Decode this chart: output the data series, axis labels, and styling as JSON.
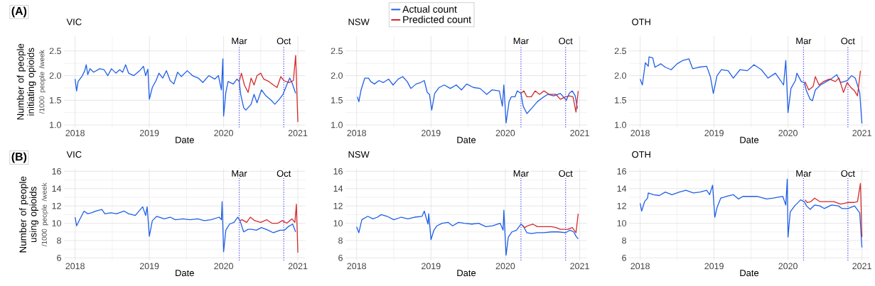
{
  "chart_data": [
    {
      "type": "line",
      "title": "VIC",
      "xlabel": "Date",
      "ylabel": "Number of people initiating opioids",
      "annotations": [
        "(A)",
        "/1000 people /week"
      ],
      "xlim": [
        2017.85,
        2021.1
      ],
      "ylim": [
        0.95,
        2.8
      ],
      "xticks": [
        2018,
        2019,
        2020,
        2021
      ],
      "yticks": [
        {
          "value": 1,
          "label": "1.0"
        },
        {
          "value": 1.5,
          "label": "1.5"
        },
        {
          "value": 2,
          "label": "2.0"
        },
        {
          "value": 2.5,
          "label": "2.5"
        }
      ],
      "grid": true,
      "ref_lines": [
        {
          "axis": "x",
          "value": 2020.21,
          "label": "Mar",
          "color": "#5555ee",
          "line_style": "dotted"
        },
        {
          "axis": "x",
          "value": 2020.81,
          "label": "Oct",
          "color": "#5555ee",
          "line_style": "dotted"
        }
      ],
      "series": [
        {
          "color": "#1f5fe8",
          "x": [
            2018.0,
            2018.02,
            2018.04,
            2018.09,
            2018.13,
            2018.15,
            2018.17,
            2018.2,
            2018.25,
            2018.33,
            2018.39,
            2018.44,
            2018.49,
            2018.55,
            2018.6,
            2018.64,
            2018.68,
            2018.72,
            2018.79,
            2018.87,
            2018.92,
            2018.95,
            2018.98,
            2019.0,
            2019.04,
            2019.09,
            2019.13,
            2019.18,
            2019.23,
            2019.28,
            2019.33,
            2019.38,
            2019.43,
            2019.51,
            2019.58,
            2019.66,
            2019.72,
            2019.8,
            2019.88,
            2019.93,
            2019.97,
            2019.99,
            2020.0,
            2020.03,
            2020.06,
            2020.13,
            2020.18,
            2020.21,
            2020.23,
            2020.27,
            2020.3,
            2020.37,
            2020.41,
            2020.45,
            2020.51,
            2020.57,
            2020.64,
            2020.69,
            2020.75,
            2020.8,
            2020.85,
            2020.89,
            2020.92,
            2020.97
          ],
          "values": [
            1.93,
            1.69,
            1.88,
            1.98,
            2.1,
            2.22,
            2.02,
            2.14,
            2.07,
            2.14,
            2.12,
            2.0,
            2.14,
            2.05,
            2.12,
            2.07,
            2.22,
            2.05,
            2.0,
            2.1,
            2.19,
            2.0,
            2.13,
            1.52,
            1.76,
            1.9,
            2.05,
            1.95,
            2.1,
            1.9,
            1.83,
            2.07,
            1.98,
            2.1,
            2.0,
            1.95,
            1.86,
            2.0,
            1.93,
            2.0,
            1.71,
            2.34,
            1.18,
            1.66,
            1.88,
            1.83,
            1.93,
            1.88,
            1.62,
            1.35,
            1.3,
            1.42,
            1.62,
            1.45,
            1.71,
            1.59,
            1.5,
            1.42,
            1.52,
            1.62,
            1.81,
            1.95,
            1.86,
            1.64
          ]
        },
        {
          "color": "#d42a2a",
          "x": [
            2020.21,
            2020.24,
            2020.28,
            2020.33,
            2020.37,
            2020.41,
            2020.45,
            2020.5,
            2020.54,
            2020.61,
            2020.67,
            2020.72,
            2020.77,
            2020.81,
            2020.88,
            2020.94,
            2020.97,
            2021.0
          ],
          "values": [
            1.88,
            2.05,
            1.81,
            1.66,
            1.95,
            1.81,
            2.0,
            2.05,
            1.93,
            1.88,
            1.81,
            1.76,
            1.98,
            1.9,
            1.86,
            1.9,
            2.41,
            1.06
          ]
        }
      ]
    },
    {
      "type": "line",
      "title": "NSW",
      "xlabel": "Date",
      "xlim": [
        2017.85,
        2021.1
      ],
      "ylim": [
        0.95,
        2.8
      ],
      "xticks": [
        2018,
        2019,
        2020,
        2021
      ],
      "yticks": [
        {
          "value": 1,
          "label": "1.0"
        },
        {
          "value": 1.5,
          "label": "1.5"
        },
        {
          "value": 2,
          "label": "2.0"
        },
        {
          "value": 2.5,
          "label": "2.5"
        }
      ],
      "grid": true,
      "legend": "top",
      "ref_lines": [
        {
          "axis": "x",
          "value": 2020.21,
          "label": "Mar",
          "color": "#5555ee",
          "line_style": "dotted"
        },
        {
          "axis": "x",
          "value": 2020.81,
          "label": "Oct",
          "color": "#5555ee",
          "line_style": "dotted"
        }
      ],
      "series": [
        {
          "name": "Actual count",
          "color": "#1f5fe8",
          "x": [
            2018.01,
            2018.03,
            2018.06,
            2018.11,
            2018.16,
            2018.19,
            2018.24,
            2018.3,
            2018.36,
            2018.43,
            2018.49,
            2018.56,
            2018.62,
            2018.68,
            2018.73,
            2018.8,
            2018.86,
            2018.91,
            2018.95,
            2018.98,
            2019.01,
            2019.05,
            2019.11,
            2019.18,
            2019.26,
            2019.34,
            2019.41,
            2019.48,
            2019.57,
            2019.66,
            2019.75,
            2019.82,
            2019.92,
            2019.96,
            2019.98,
            2020.01,
            2020.05,
            2020.08,
            2020.13,
            2020.16,
            2020.21,
            2020.24,
            2020.29,
            2020.35,
            2020.43,
            2020.49,
            2020.57,
            2020.65,
            2020.74,
            2020.82,
            2020.86,
            2020.9,
            2020.94,
            2020.97
          ],
          "values": [
            1.57,
            1.47,
            1.71,
            1.95,
            1.95,
            1.88,
            1.83,
            1.9,
            1.86,
            1.93,
            1.81,
            1.93,
            1.98,
            1.88,
            1.74,
            1.83,
            1.86,
            1.9,
            1.66,
            1.62,
            1.3,
            1.64,
            1.76,
            1.81,
            1.74,
            1.81,
            1.71,
            1.83,
            1.76,
            1.74,
            1.62,
            1.71,
            1.69,
            1.38,
            1.81,
            1.04,
            1.47,
            1.57,
            1.57,
            1.69,
            1.64,
            1.38,
            1.23,
            1.33,
            1.47,
            1.54,
            1.62,
            1.59,
            1.64,
            1.5,
            1.64,
            1.69,
            1.59,
            1.33
          ]
        },
        {
          "name": "Predicted count",
          "color": "#d42a2a",
          "x": [
            2020.21,
            2020.25,
            2020.29,
            2020.35,
            2020.4,
            2020.46,
            2020.52,
            2020.59,
            2020.68,
            2020.74,
            2020.81,
            2020.86,
            2020.91,
            2020.95,
            2020.98
          ],
          "values": [
            1.64,
            1.69,
            1.57,
            1.57,
            1.69,
            1.62,
            1.69,
            1.62,
            1.62,
            1.52,
            1.57,
            1.59,
            1.57,
            1.26,
            1.69
          ]
        }
      ]
    },
    {
      "type": "line",
      "title": "OTH",
      "xlabel": "Date",
      "xlim": [
        2017.85,
        2021.1
      ],
      "ylim": [
        0.95,
        2.8
      ],
      "xticks": [
        2018,
        2019,
        2020,
        2021
      ],
      "yticks": [
        {
          "value": 1,
          "label": "1.0"
        },
        {
          "value": 1.5,
          "label": "1.5"
        },
        {
          "value": 2,
          "label": "2.0"
        },
        {
          "value": 2.5,
          "label": "2.5"
        }
      ],
      "grid": true,
      "ref_lines": [
        {
          "axis": "x",
          "value": 2020.21,
          "label": "Mar",
          "color": "#5555ee",
          "line_style": "dotted"
        },
        {
          "axis": "x",
          "value": 2020.81,
          "label": "Oct",
          "color": "#5555ee",
          "line_style": "dotted"
        }
      ],
      "series": [
        {
          "color": "#1f5fe8",
          "x": [
            2018.0,
            2018.03,
            2018.07,
            2018.11,
            2018.12,
            2018.17,
            2018.2,
            2018.28,
            2018.34,
            2018.42,
            2018.5,
            2018.58,
            2018.66,
            2018.71,
            2018.79,
            2018.9,
            2018.95,
            2018.99,
            2019.04,
            2019.1,
            2019.19,
            2019.26,
            2019.35,
            2019.45,
            2019.54,
            2019.64,
            2019.73,
            2019.83,
            2019.9,
            2019.94,
            2019.97,
            2020.0,
            2020.04,
            2020.1,
            2020.12,
            2020.18,
            2020.22,
            2020.25,
            2020.3,
            2020.33,
            2020.37,
            2020.44,
            2020.52,
            2020.58,
            2020.66,
            2020.71,
            2020.8,
            2020.86,
            2020.91,
            2020.97,
            2021.0
          ],
          "values": [
            1.93,
            1.81,
            2.26,
            2.19,
            2.38,
            2.36,
            2.17,
            2.24,
            2.17,
            2.12,
            2.24,
            2.31,
            2.34,
            2.14,
            2.17,
            2.19,
            1.98,
            1.64,
            2.0,
            2.12,
            2.1,
            1.95,
            2.12,
            2.1,
            2.22,
            2.12,
            1.95,
            2.05,
            1.9,
            1.81,
            2.31,
            1.25,
            1.74,
            1.9,
            2.05,
            1.88,
            1.86,
            1.69,
            1.52,
            1.49,
            1.71,
            1.81,
            1.88,
            1.93,
            2.02,
            1.86,
            1.9,
            2.0,
            1.95,
            1.66,
            1.03
          ]
        },
        {
          "color": "#d42a2a",
          "x": [
            2020.23,
            2020.28,
            2020.34,
            2020.37,
            2020.42,
            2020.48,
            2020.56,
            2020.64,
            2020.69,
            2020.75,
            2020.8,
            2020.85,
            2020.9,
            2020.94,
            2020.98
          ],
          "values": [
            1.88,
            1.71,
            1.78,
            1.98,
            1.81,
            1.88,
            1.93,
            1.88,
            1.95,
            1.66,
            1.86,
            1.76,
            1.69,
            1.59,
            2.1
          ]
        }
      ]
    },
    {
      "type": "line",
      "title": "VIC",
      "xlabel": "Date",
      "ylabel": "Number of people using opioids",
      "annotations": [
        "(B)",
        "/1000 people /week"
      ],
      "xlim": [
        2017.85,
        2021.1
      ],
      "ylim": [
        5.7,
        16.3
      ],
      "xticks": [
        2018,
        2019,
        2020,
        2021
      ],
      "yticks": [
        6,
        8,
        10,
        12,
        14,
        16
      ],
      "grid": true,
      "ref_lines": [
        {
          "axis": "x",
          "value": 2020.21,
          "label": "Mar",
          "color": "#5555ee",
          "line_style": "dotted"
        },
        {
          "axis": "x",
          "value": 2020.81,
          "label": "Oct",
          "color": "#5555ee",
          "line_style": "dotted"
        }
      ],
      "series": [
        {
          "color": "#1f5fe8",
          "x": [
            2018.0,
            2018.02,
            2018.06,
            2018.12,
            2018.17,
            2018.22,
            2018.28,
            2018.36,
            2018.4,
            2018.48,
            2018.56,
            2018.66,
            2018.72,
            2018.81,
            2018.91,
            2018.95,
            2018.97,
            2019.0,
            2019.04,
            2019.1,
            2019.2,
            2019.28,
            2019.35,
            2019.45,
            2019.55,
            2019.65,
            2019.74,
            2019.83,
            2019.94,
            2019.97,
            2019.98,
            2020.0,
            2020.03,
            2020.08,
            2020.14,
            2020.19,
            2020.22,
            2020.27,
            2020.33,
            2020.38,
            2020.44,
            2020.51,
            2020.6,
            2020.67,
            2020.76,
            2020.82,
            2020.87,
            2020.93,
            2020.97
          ],
          "values": [
            10.7,
            9.7,
            10.4,
            11.4,
            11.1,
            11.2,
            11.4,
            11.6,
            11.1,
            11.2,
            11.1,
            11.4,
            11.1,
            10.9,
            11.9,
            10.9,
            11.9,
            8.5,
            10.3,
            10.8,
            10.5,
            10.7,
            10.4,
            10.5,
            10.4,
            10.5,
            10.3,
            10.4,
            10.7,
            10.4,
            12.5,
            6.7,
            9.2,
            9.9,
            10.1,
            10.7,
            10.3,
            9.0,
            9.3,
            9.3,
            9.2,
            9.5,
            9.2,
            8.9,
            9.2,
            9.2,
            9.6,
            9.9,
            9.0
          ]
        },
        {
          "color": "#d42a2a",
          "x": [
            2020.22,
            2020.25,
            2020.31,
            2020.36,
            2020.42,
            2020.5,
            2020.58,
            2020.65,
            2020.73,
            2020.79,
            2020.85,
            2020.92,
            2020.96,
            2020.98,
            2021.0
          ],
          "values": [
            10.3,
            10.4,
            10.1,
            10.7,
            10.3,
            10.1,
            10.4,
            10.0,
            10.0,
            10.3,
            10.0,
            10.5,
            10.1,
            12.2,
            6.6
          ]
        }
      ]
    },
    {
      "type": "line",
      "title": "NSW",
      "xlabel": "Date",
      "xlim": [
        2017.85,
        2021.1
      ],
      "ylim": [
        5.7,
        16.3
      ],
      "xticks": [
        2018,
        2019,
        2020,
        2021
      ],
      "yticks": [
        6,
        8,
        10,
        12,
        14,
        16
      ],
      "grid": true,
      "ref_lines": [
        {
          "axis": "x",
          "value": 2020.21,
          "label": "Mar",
          "color": "#5555ee",
          "line_style": "dotted"
        },
        {
          "axis": "x",
          "value": 2020.81,
          "label": "Oct",
          "color": "#5555ee",
          "line_style": "dotted"
        }
      ],
      "series": [
        {
          "color": "#1f5fe8",
          "x": [
            2018.0,
            2018.03,
            2018.07,
            2018.15,
            2018.22,
            2018.28,
            2018.33,
            2018.41,
            2018.5,
            2018.6,
            2018.69,
            2018.78,
            2018.88,
            2018.91,
            2018.96,
            2018.97,
            2019.0,
            2019.04,
            2019.08,
            2019.15,
            2019.23,
            2019.29,
            2019.37,
            2019.45,
            2019.55,
            2019.64,
            2019.74,
            2019.83,
            2019.93,
            2019.97,
            2019.98,
            2020.01,
            2020.04,
            2020.09,
            2020.15,
            2020.21,
            2020.24,
            2020.29,
            2020.35,
            2020.43,
            2020.52,
            2020.62,
            2020.71,
            2020.81,
            2020.87,
            2020.92,
            2020.95,
            2020.98
          ],
          "values": [
            9.6,
            8.9,
            10.4,
            10.8,
            10.5,
            10.7,
            11.0,
            10.8,
            10.4,
            10.7,
            10.5,
            10.7,
            10.8,
            11.4,
            9.9,
            11.1,
            8.1,
            9.2,
            9.7,
            10.0,
            10.1,
            9.7,
            10.1,
            10.0,
            9.9,
            10.0,
            9.6,
            9.7,
            10.0,
            9.2,
            11.5,
            6.3,
            8.4,
            9.0,
            9.2,
            9.9,
            9.7,
            8.9,
            8.8,
            8.9,
            8.9,
            9.0,
            9.0,
            8.9,
            9.2,
            9.0,
            8.5,
            8.2
          ]
        },
        {
          "color": "#d42a2a",
          "x": [
            2020.23,
            2020.26,
            2020.3,
            2020.37,
            2020.43,
            2020.52,
            2020.62,
            2020.68,
            2020.74,
            2020.84,
            2020.9,
            2020.95,
            2020.98
          ],
          "values": [
            9.7,
            9.5,
            9.7,
            9.9,
            9.6,
            9.6,
            9.6,
            9.5,
            9.3,
            9.3,
            9.5,
            8.9,
            11.1
          ]
        }
      ]
    },
    {
      "type": "line",
      "title": "OTH",
      "xlabel": "Date",
      "xlim": [
        2017.85,
        2021.1
      ],
      "ylim": [
        5.7,
        16.3
      ],
      "xticks": [
        2018,
        2019,
        2020,
        2021
      ],
      "yticks": [
        6,
        8,
        10,
        12,
        14,
        16
      ],
      "grid": true,
      "ref_lines": [
        {
          "axis": "x",
          "value": 2020.21,
          "label": "Mar",
          "color": "#5555ee",
          "line_style": "dotted"
        },
        {
          "axis": "x",
          "value": 2020.81,
          "label": "Oct",
          "color": "#5555ee",
          "line_style": "dotted"
        }
      ],
      "series": [
        {
          "color": "#1f5fe8",
          "x": [
            2018.0,
            2018.02,
            2018.06,
            2018.1,
            2018.11,
            2018.18,
            2018.26,
            2018.34,
            2018.43,
            2018.53,
            2018.62,
            2018.72,
            2018.81,
            2018.9,
            2018.94,
            2018.98,
            2019.01,
            2019.04,
            2019.09,
            2019.17,
            2019.26,
            2019.33,
            2019.39,
            2019.49,
            2019.58,
            2019.71,
            2019.8,
            2019.93,
            2019.97,
            2019.99,
            2020.0,
            2020.03,
            2020.09,
            2020.17,
            2020.22,
            2020.25,
            2020.3,
            2020.36,
            2020.43,
            2020.49,
            2020.59,
            2020.68,
            2020.73,
            2020.81,
            2020.9,
            2020.97,
            2021.0
          ],
          "values": [
            12.3,
            11.4,
            12.5,
            12.9,
            13.5,
            13.3,
            13.2,
            13.6,
            13.3,
            13.6,
            13.8,
            13.5,
            13.6,
            13.8,
            13.3,
            14.4,
            10.7,
            11.8,
            12.9,
            13.1,
            13.3,
            12.8,
            13.1,
            13.1,
            13.1,
            12.8,
            12.9,
            13.1,
            12.1,
            15.1,
            8.4,
            11.3,
            12.0,
            12.7,
            12.5,
            12.0,
            11.6,
            12.1,
            12.0,
            11.7,
            12.1,
            12.0,
            11.7,
            11.7,
            12.0,
            11.2,
            7.2
          ]
        },
        {
          "color": "#d42a2a",
          "x": [
            2020.23,
            2020.26,
            2020.31,
            2020.36,
            2020.43,
            2020.52,
            2020.62,
            2020.71,
            2020.81,
            2020.89,
            2020.94,
            2020.98,
            2021.0
          ],
          "values": [
            12.7,
            12.4,
            12.5,
            12.9,
            12.5,
            12.5,
            12.5,
            12.2,
            12.4,
            12.4,
            12.5,
            14.6,
            8.4
          ]
        }
      ]
    }
  ]
}
